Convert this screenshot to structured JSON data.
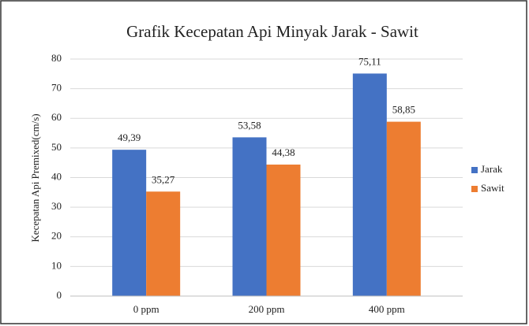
{
  "chart_data": {
    "type": "bar",
    "title": "Grafik Kecepatan Api Minyak Jarak - Sawit",
    "y_label": "Kecepatan Api Premixed(cm/s)",
    "categories": [
      "0 ppm",
      "200 ppm",
      "400 ppm"
    ],
    "series": [
      {
        "name": "Jarak",
        "color": "#4472c4",
        "values": [
          49.39,
          53.58,
          75.11
        ],
        "value_labels": [
          "49,39",
          "53,58",
          "75,11"
        ]
      },
      {
        "name": "Sawit",
        "color": "#ed7d31",
        "values": [
          35.27,
          44.38,
          58.85
        ],
        "value_labels": [
          "35,27",
          "44,38",
          "58,85"
        ]
      }
    ],
    "ylim": [
      0,
      80
    ],
    "yticks": [
      0,
      10,
      20,
      30,
      40,
      50,
      60,
      70,
      80
    ],
    "grid": true,
    "legend": "right"
  }
}
